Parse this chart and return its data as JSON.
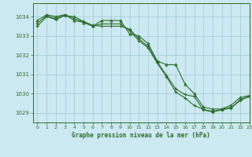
{
  "title": "Graphe pression niveau de la mer (hPa)",
  "background_color": "#cce8f0",
  "grid_color": "#a0c8d8",
  "line_color": "#2d6e2d",
  "marker_color": "#2d6e2d",
  "xlim": [
    -0.5,
    23
  ],
  "ylim": [
    1028.5,
    1034.7
  ],
  "yticks": [
    1029,
    1030,
    1031,
    1032,
    1033,
    1034
  ],
  "xticks": [
    0,
    1,
    2,
    3,
    4,
    5,
    6,
    7,
    8,
    9,
    10,
    11,
    12,
    13,
    14,
    15,
    16,
    17,
    18,
    19,
    20,
    21,
    22,
    23
  ],
  "series1": {
    "x": [
      0,
      1,
      2,
      3,
      4,
      5,
      6,
      7,
      8,
      9,
      10,
      11,
      12,
      13,
      14,
      15,
      16,
      17,
      18,
      19,
      20,
      21,
      22,
      23
    ],
    "y": [
      1033.8,
      1034.1,
      1034.0,
      1034.1,
      1033.8,
      1033.7,
      1033.5,
      1033.8,
      1033.8,
      1033.8,
      1033.1,
      1033.0,
      1032.6,
      1031.7,
      1031.5,
      1031.5,
      1030.5,
      1030.0,
      1029.3,
      1029.2,
      1029.2,
      1029.4,
      1029.8,
      1029.9
    ]
  },
  "series2": {
    "x": [
      0,
      1,
      2,
      3,
      4,
      5,
      6,
      7,
      8,
      9,
      10,
      11,
      12,
      13,
      14,
      15,
      16,
      17,
      18,
      19,
      20,
      21,
      22,
      23
    ],
    "y": [
      1033.5,
      1034.0,
      1033.85,
      1034.05,
      1034.0,
      1033.75,
      1033.55,
      1033.5,
      1033.5,
      1033.5,
      1033.35,
      1032.85,
      1032.45,
      1031.65,
      1030.95,
      1030.25,
      1029.95,
      1029.85,
      1029.15,
      1029.05,
      1029.15,
      1029.25,
      1029.65,
      1029.85
    ]
  },
  "series3": {
    "x": [
      0,
      1,
      2,
      3,
      4,
      5,
      6,
      7,
      8,
      9,
      10,
      11,
      12,
      13,
      14,
      15,
      16,
      17,
      18,
      19,
      20,
      21,
      22,
      23
    ],
    "y": [
      1033.65,
      1034.05,
      1033.9,
      1034.1,
      1033.9,
      1033.72,
      1033.52,
      1033.62,
      1033.62,
      1033.62,
      1033.28,
      1032.75,
      1032.38,
      1031.58,
      1030.88,
      1030.08,
      1029.78,
      1029.38,
      1029.18,
      1029.08,
      1029.18,
      1029.28,
      1029.68,
      1029.88
    ]
  }
}
